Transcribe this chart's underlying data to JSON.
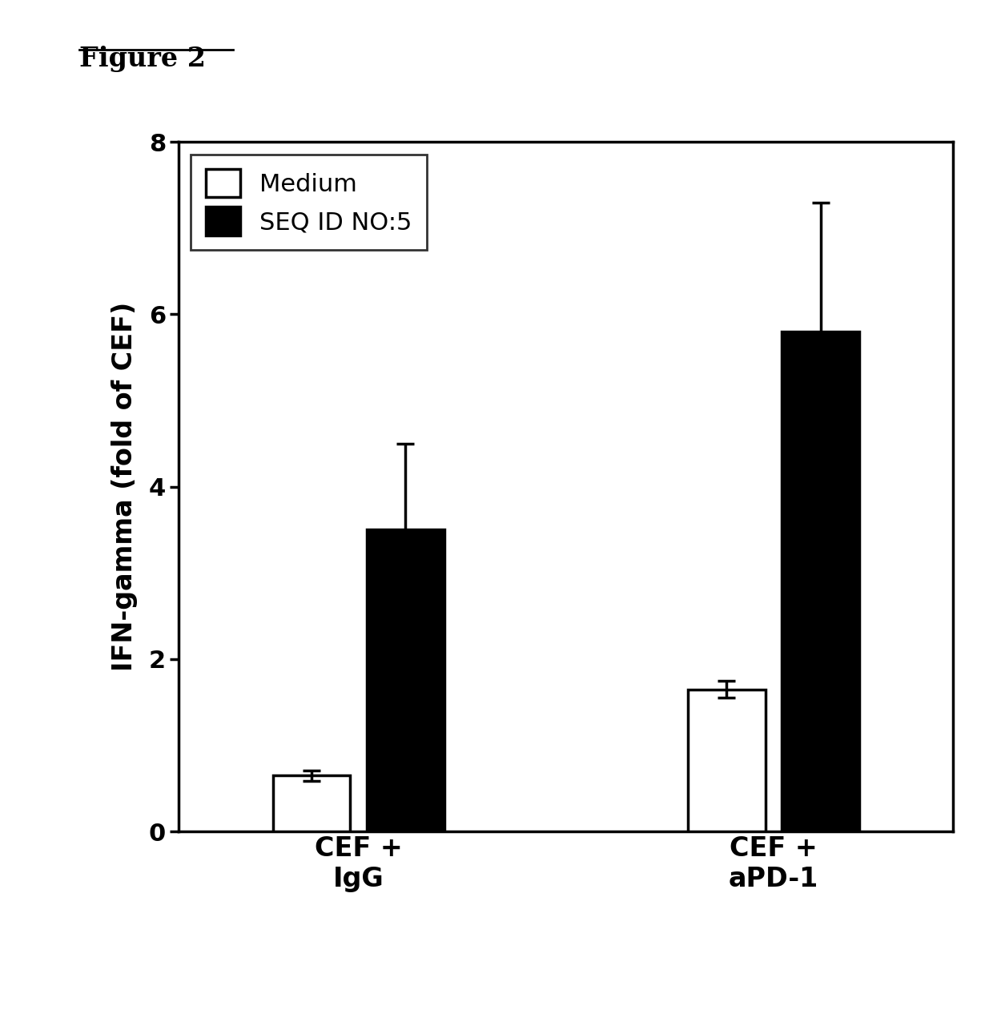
{
  "title": "Figure 2",
  "ylabel": "IFN-gamma (fold of CEF)",
  "groups": [
    "CEF +\nIgG",
    "CEF +\naPD-1"
  ],
  "legend_labels": [
    "Medium",
    "SEQ ID NO:5"
  ],
  "bar_colors": [
    "white",
    "black"
  ],
  "bar_edgecolors": [
    "black",
    "black"
  ],
  "values": {
    "medium": [
      0.65,
      1.65
    ],
    "seq5": [
      3.5,
      5.8
    ]
  },
  "errors": {
    "medium": [
      0.06,
      0.1
    ],
    "seq5": [
      1.0,
      1.5
    ]
  },
  "ylim": [
    0,
    8
  ],
  "yticks": [
    0,
    2,
    4,
    6,
    8
  ],
  "bar_width": 0.28,
  "linewidth": 2.5,
  "capsize": 8,
  "legend_fontsize": 22,
  "ylabel_fontsize": 24,
  "tick_fontsize": 22,
  "xlabel_fontsize": 24,
  "title_fontsize": 24,
  "error_linewidth": 2.5
}
